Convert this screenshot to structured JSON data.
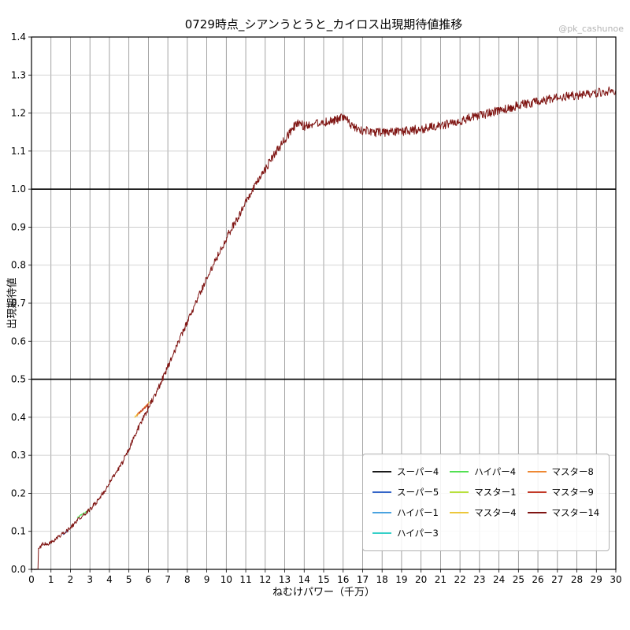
{
  "watermark": "@pk_cashunoe",
  "chart_data": {
    "type": "line",
    "title": "0729時点_シアンうとうと_カイロス出現期待値推移",
    "xlabel": "ねむけパワー（千万）",
    "ylabel": "出現期待値",
    "xlim": [
      0,
      30
    ],
    "ylim": [
      0.0,
      1.4
    ],
    "x_tick_step": 1,
    "y_tick_step": 0.1,
    "grid": true,
    "emphasized_hlines": [
      0.5,
      1.0
    ],
    "legend_position": "lower right",
    "legend_columns": [
      [
        "スーパー4",
        "スーパー5",
        "ハイパー1",
        "ハイパー3"
      ],
      [
        "ハイパー4",
        "マスター1",
        "マスター4"
      ],
      [
        "マスター8",
        "マスター9",
        "マスター14"
      ]
    ],
    "series": [
      {
        "name": "スーパー4",
        "color": "#1a1a1a",
        "noise": 0.004,
        "points": []
      },
      {
        "name": "スーパー5",
        "color": "#3465c8",
        "noise": 0.004,
        "points": [
          [
            1.62,
            0.092
          ],
          [
            1.78,
            0.098
          ],
          [
            1.9,
            0.103
          ]
        ]
      },
      {
        "name": "ハイパー1",
        "color": "#4aa3e0",
        "noise": 0.004,
        "points": []
      },
      {
        "name": "ハイパー3",
        "color": "#35d0c8",
        "noise": 0.004,
        "points": []
      },
      {
        "name": "ハイパー4",
        "color": "#52e052",
        "noise": 0.004,
        "points": [
          [
            2.35,
            0.135
          ],
          [
            2.6,
            0.145
          ],
          [
            2.85,
            0.152
          ],
          [
            3.0,
            0.158
          ]
        ]
      },
      {
        "name": "マスター1",
        "color": "#b8e03c",
        "noise": 0.004,
        "points": []
      },
      {
        "name": "マスター4",
        "color": "#ecc73b",
        "noise": 0.005,
        "points": [
          [
            5.3,
            0.4
          ],
          [
            5.6,
            0.415
          ],
          [
            5.9,
            0.43
          ],
          [
            6.1,
            0.44
          ]
        ]
      },
      {
        "name": "マスター8",
        "color": "#ee8833",
        "noise": 0.005,
        "points": [
          [
            5.4,
            0.405
          ],
          [
            5.7,
            0.42
          ],
          [
            6.0,
            0.435
          ]
        ]
      },
      {
        "name": "マスター9",
        "color": "#c23a28",
        "noise": 0.005,
        "points": [
          [
            5.5,
            0.41
          ],
          [
            6.0,
            0.435
          ]
        ]
      },
      {
        "name": "マスター14",
        "color": "#7f1412",
        "noise": 0.012,
        "points": [
          [
            0,
            0
          ],
          [
            0.33,
            0
          ],
          [
            0.36,
            0.055
          ],
          [
            0.5,
            0.06
          ],
          [
            0.6,
            0.07
          ],
          [
            0.75,
            0.065
          ],
          [
            0.9,
            0.068
          ],
          [
            1.1,
            0.075
          ],
          [
            1.3,
            0.082
          ],
          [
            1.5,
            0.09
          ],
          [
            1.7,
            0.096
          ],
          [
            1.9,
            0.105
          ],
          [
            2.1,
            0.115
          ],
          [
            2.3,
            0.125
          ],
          [
            2.5,
            0.135
          ],
          [
            2.7,
            0.143
          ],
          [
            2.9,
            0.152
          ],
          [
            3.1,
            0.163
          ],
          [
            3.3,
            0.175
          ],
          [
            3.5,
            0.19
          ],
          [
            3.8,
            0.21
          ],
          [
            4.1,
            0.235
          ],
          [
            4.4,
            0.26
          ],
          [
            4.7,
            0.285
          ],
          [
            5.0,
            0.315
          ],
          [
            5.3,
            0.35
          ],
          [
            5.6,
            0.385
          ],
          [
            5.9,
            0.415
          ],
          [
            6.2,
            0.445
          ],
          [
            6.5,
            0.475
          ],
          [
            6.8,
            0.51
          ],
          [
            7.1,
            0.545
          ],
          [
            7.4,
            0.58
          ],
          [
            7.7,
            0.615
          ],
          [
            8.0,
            0.65
          ],
          [
            8.3,
            0.685
          ],
          [
            8.6,
            0.72
          ],
          [
            9.0,
            0.765
          ],
          [
            9.4,
            0.81
          ],
          [
            9.8,
            0.85
          ],
          [
            10.2,
            0.89
          ],
          [
            10.6,
            0.925
          ],
          [
            11.0,
            0.965
          ],
          [
            11.4,
            1.0
          ],
          [
            11.8,
            1.035
          ],
          [
            12.2,
            1.07
          ],
          [
            12.6,
            1.1
          ],
          [
            13.0,
            1.13
          ],
          [
            13.4,
            1.16
          ],
          [
            13.7,
            1.175
          ],
          [
            14.0,
            1.165
          ],
          [
            14.3,
            1.17
          ],
          [
            14.7,
            1.175
          ],
          [
            15.0,
            1.175
          ],
          [
            15.4,
            1.18
          ],
          [
            15.8,
            1.185
          ],
          [
            16.1,
            1.19
          ],
          [
            16.35,
            1.17
          ],
          [
            16.6,
            1.16
          ],
          [
            17.0,
            1.155
          ],
          [
            17.5,
            1.15
          ],
          [
            18.0,
            1.148
          ],
          [
            18.5,
            1.15
          ],
          [
            19.0,
            1.152
          ],
          [
            19.5,
            1.155
          ],
          [
            20.0,
            1.158
          ],
          [
            20.5,
            1.162
          ],
          [
            21.0,
            1.168
          ],
          [
            21.5,
            1.173
          ],
          [
            22.0,
            1.18
          ],
          [
            22.5,
            1.187
          ],
          [
            23.0,
            1.193
          ],
          [
            23.5,
            1.2
          ],
          [
            24.0,
            1.207
          ],
          [
            24.5,
            1.213
          ],
          [
            25.0,
            1.22
          ],
          [
            25.5,
            1.225
          ],
          [
            26.0,
            1.23
          ],
          [
            26.5,
            1.235
          ],
          [
            27.0,
            1.24
          ],
          [
            27.5,
            1.243
          ],
          [
            28.0,
            1.247
          ],
          [
            28.5,
            1.25
          ],
          [
            29.0,
            1.253
          ],
          [
            29.5,
            1.257
          ],
          [
            30.0,
            1.26
          ]
        ]
      }
    ]
  }
}
